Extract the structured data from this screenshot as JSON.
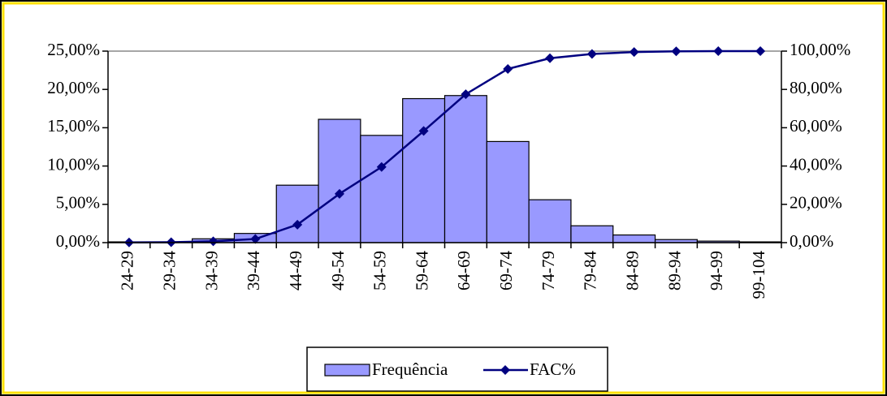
{
  "chart_data": {
    "type": "bar",
    "categories": [
      "24-29",
      "29-34",
      "34-39",
      "39-44",
      "44-49",
      "49-54",
      "54-59",
      "59-64",
      "64-69",
      "69-74",
      "74-79",
      "79-84",
      "84-89",
      "89-94",
      "94-99",
      "99-104"
    ],
    "series": [
      {
        "name": "Frequência",
        "type": "bar",
        "color": "#9999ff",
        "values": [
          0.1,
          0.1,
          0.5,
          1.2,
          7.5,
          16.1,
          14.0,
          18.8,
          19.2,
          13.2,
          5.6,
          2.2,
          1.0,
          0.4,
          0.2,
          0.1
        ]
      },
      {
        "name": "FAC%",
        "type": "line",
        "axis": "y2",
        "color": "#000080",
        "values": [
          0.1,
          0.2,
          0.7,
          1.9,
          9.4,
          25.5,
          39.5,
          58.3,
          77.5,
          90.7,
          96.3,
          98.5,
          99.5,
          99.9,
          100,
          100
        ]
      }
    ],
    "ylim": [
      0,
      25
    ],
    "yticks": [
      {
        "value": 0,
        "label": "0,00%"
      },
      {
        "value": 5,
        "label": "5,00%"
      },
      {
        "value": 10,
        "label": "10,00%"
      },
      {
        "value": 15,
        "label": "15,00%"
      },
      {
        "value": 20,
        "label": "20,00%"
      },
      {
        "value": 25,
        "label": "25,00%"
      }
    ],
    "y2lim": [
      0,
      100
    ],
    "y2ticks": [
      {
        "value": 0,
        "label": "0,00%"
      },
      {
        "value": 20,
        "label": "20,00%"
      },
      {
        "value": 40,
        "label": "40,00%"
      },
      {
        "value": 60,
        "label": "60,00%"
      },
      {
        "value": 80,
        "label": "80,00%"
      },
      {
        "value": 100,
        "label": "100,00%"
      }
    ],
    "grid": false,
    "legend": "bottom"
  }
}
